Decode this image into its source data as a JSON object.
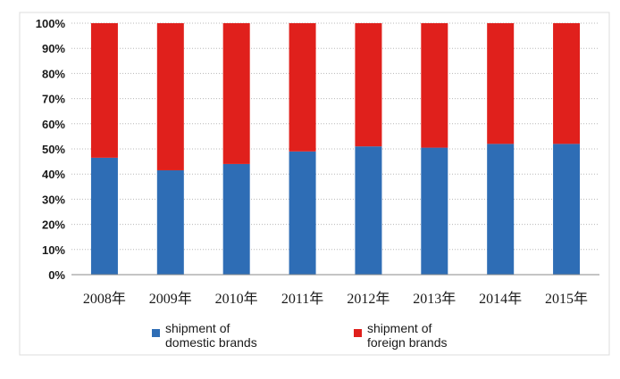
{
  "chart_data": {
    "type": "bar",
    "stacked": true,
    "categories": [
      "2008年",
      "2009年",
      "2010年",
      "2011年",
      "2012年",
      "2013年",
      "2014年",
      "2015年"
    ],
    "series": [
      {
        "name": "shipment of domestic brands",
        "name_lines": [
          "shipment of",
          "domestic brands"
        ],
        "color": "#2e6db5",
        "values": [
          46.5,
          41.5,
          44,
          49,
          51,
          50.5,
          52,
          52
        ]
      },
      {
        "name": "shipment of foreign brands",
        "name_lines": [
          "shipment of",
          "foreign brands"
        ],
        "color": "#e0201c",
        "values": [
          53.5,
          58.5,
          56,
          51,
          49,
          49.5,
          48,
          48
        ]
      }
    ],
    "yticks": [
      "0%",
      "10%",
      "20%",
      "30%",
      "40%",
      "50%",
      "60%",
      "70%",
      "80%",
      "90%",
      "100%"
    ],
    "ylim": [
      0,
      100
    ],
    "grid": true,
    "legend_position": "bottom"
  }
}
